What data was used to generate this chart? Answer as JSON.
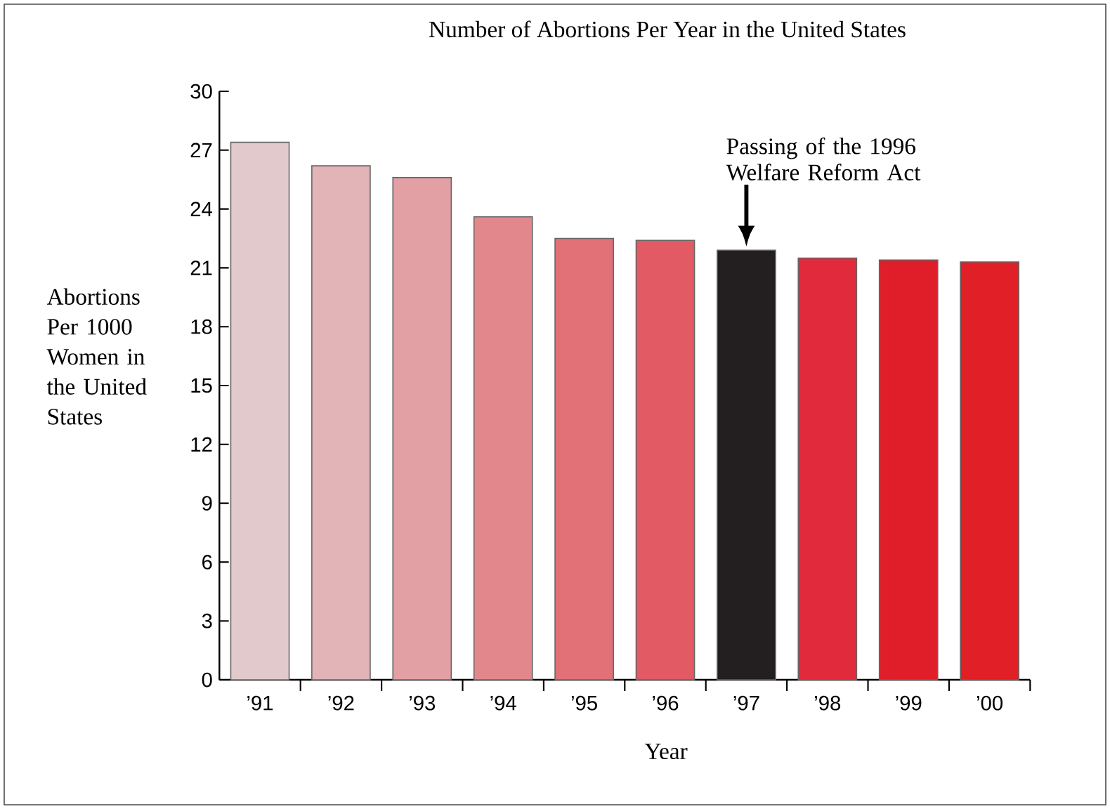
{
  "chart_data": {
    "type": "bar",
    "title": "Number of Abortions Per Year in the United States",
    "xlabel": "Year",
    "ylabel": "Abortions Per 1000 Women in the United States",
    "categories": [
      "’91",
      "’92",
      "’93",
      "’94",
      "’95",
      "’96",
      "’97",
      "’98",
      "’99",
      "’00"
    ],
    "values": [
      27.4,
      26.2,
      25.6,
      23.6,
      22.5,
      22.4,
      21.9,
      21.5,
      21.4,
      21.3
    ],
    "colors": [
      "#e2cacc",
      "#e2b4b7",
      "#e3a0a4",
      "#e2878c",
      "#e27077",
      "#e25a64",
      "#231f20",
      "#e12a3c",
      "#e01e2a",
      "#e01f26"
    ],
    "ylim": [
      0,
      30
    ],
    "yticks": [
      0,
      3,
      6,
      9,
      12,
      15,
      18,
      21,
      24,
      27,
      30
    ],
    "annotations": [
      {
        "text": "Passing of the 1996 Welfare Reform Act",
        "x": "’97",
        "y": 21.9
      }
    ]
  }
}
